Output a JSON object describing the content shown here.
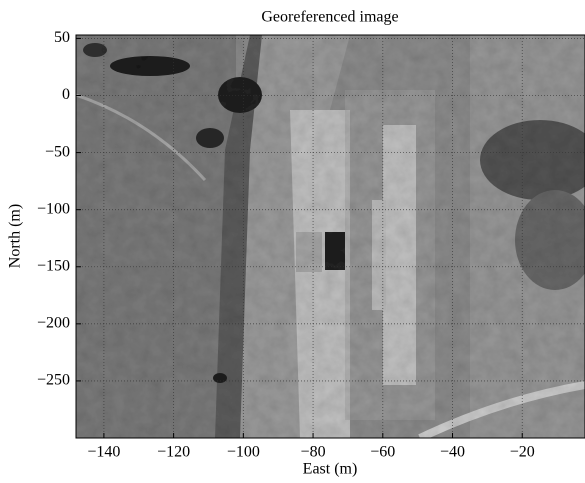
{
  "chart_data": {
    "type": "image",
    "title": "Georeferenced image",
    "xlabel": "East (m)",
    "ylabel": "North (m)",
    "xlim": [
      -148,
      -2
    ],
    "ylim": [
      -300,
      53
    ],
    "xticks": [
      {
        "value": -140,
        "label": "−140"
      },
      {
        "value": -120,
        "label": "−120"
      },
      {
        "value": -100,
        "label": "−100"
      },
      {
        "value": -80,
        "label": "−80"
      },
      {
        "value": -60,
        "label": "−60"
      },
      {
        "value": -40,
        "label": "−40"
      },
      {
        "value": -20,
        "label": "−20"
      }
    ],
    "yticks": [
      50,
      0,
      {
        "value": -50,
        "label": "−50"
      },
      {
        "value": -100,
        "label": "−100"
      },
      {
        "value": -150,
        "label": "−150"
      },
      {
        "value": -200,
        "label": "−200"
      },
      {
        "value": -250,
        "label": "−250"
      }
    ],
    "grid": true
  }
}
